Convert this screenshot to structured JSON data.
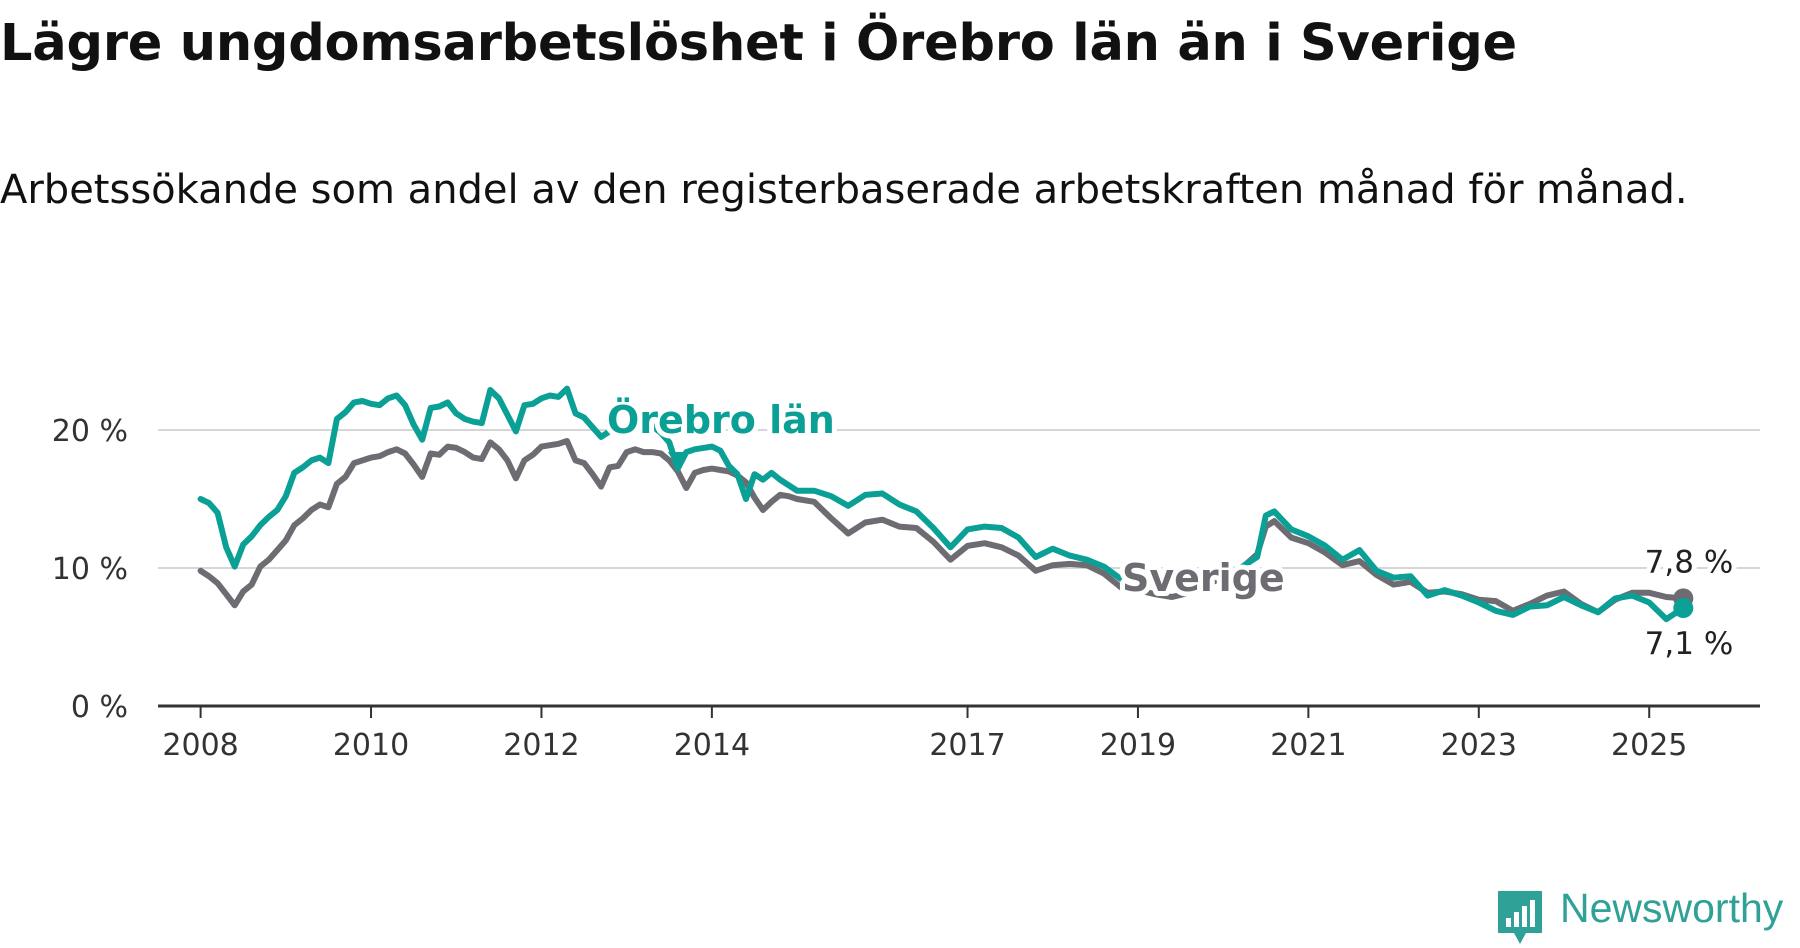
{
  "header": {
    "title": "Lägre ungdomsarbetslöshet i Örebro län än i Sverige",
    "subtitle": "Arbetssökande som andel av den registerbaserade arbetskraften månad för månad."
  },
  "brand": {
    "name": "Newsworthy",
    "color": "#2fa197"
  },
  "chart_data": {
    "type": "line",
    "title": "Lägre ungdomsarbetslöshet i Örebro län än i Sverige",
    "subtitle": "Arbetssökande som andel av den registerbaserade arbetskraften månad för månad.",
    "xlabel": "",
    "ylabel": "",
    "ylim": [
      0,
      20
    ],
    "xlim": [
      2007.5,
      2026.3
    ],
    "y_ticks": [
      0,
      10,
      20
    ],
    "y_tick_labels": [
      "0 %",
      "10 %",
      "20 %"
    ],
    "x_ticks": [
      2008,
      2010,
      2012,
      2014,
      2017,
      2019,
      2021,
      2023,
      2025
    ],
    "x_tick_labels": [
      "2008",
      "2010",
      "2012",
      "2014",
      "2017",
      "2019",
      "2021",
      "2023",
      "2025"
    ],
    "grid": true,
    "series": [
      {
        "name": "Sverige",
        "color": "#6e6c72",
        "end_label": "7,8 %",
        "x": [
          2008.0,
          2008.1,
          2008.2,
          2008.3,
          2008.4,
          2008.5,
          2008.6,
          2008.7,
          2008.8,
          2008.9,
          2009.0,
          2009.1,
          2009.2,
          2009.3,
          2009.4,
          2009.5,
          2009.6,
          2009.7,
          2009.8,
          2009.9,
          2010.0,
          2010.1,
          2010.2,
          2010.3,
          2010.4,
          2010.5,
          2010.6,
          2010.7,
          2010.8,
          2010.9,
          2011.0,
          2011.1,
          2011.2,
          2011.3,
          2011.4,
          2011.5,
          2011.6,
          2011.7,
          2011.8,
          2011.9,
          2012.0,
          2012.1,
          2012.2,
          2012.3,
          2012.4,
          2012.5,
          2012.6,
          2012.7,
          2012.8,
          2012.9,
          2013.0,
          2013.1,
          2013.2,
          2013.3,
          2013.4,
          2013.5,
          2013.6,
          2013.7,
          2013.8,
          2013.9,
          2014.0,
          2014.1,
          2014.2,
          2014.3,
          2014.4,
          2014.5,
          2014.6,
          2014.7,
          2014.8,
          2014.9,
          2015.0,
          2015.2,
          2015.4,
          2015.6,
          2015.8,
          2016.0,
          2016.2,
          2016.4,
          2016.6,
          2016.8,
          2017.0,
          2017.2,
          2017.4,
          2017.6,
          2017.8,
          2018.0,
          2018.2,
          2018.4,
          2018.6,
          2018.8,
          2019.0,
          2019.2,
          2019.4,
          2019.6,
          2019.8,
          2020.0,
          2020.2,
          2020.4,
          2020.5,
          2020.6,
          2020.8,
          2021.0,
          2021.2,
          2021.4,
          2021.6,
          2021.8,
          2022.0,
          2022.2,
          2022.4,
          2022.6,
          2022.8,
          2023.0,
          2023.2,
          2023.4,
          2023.6,
          2023.8,
          2024.0,
          2024.2,
          2024.4,
          2024.6,
          2024.8,
          2025.0,
          2025.2,
          2025.4
        ],
        "y": [
          9.8,
          9.4,
          8.9,
          8.1,
          7.3,
          8.3,
          8.8,
          10.1,
          10.6,
          11.3,
          12.0,
          13.1,
          13.6,
          14.2,
          14.6,
          14.4,
          16.1,
          16.6,
          17.6,
          17.8,
          18.0,
          18.1,
          18.4,
          18.6,
          18.3,
          17.5,
          16.6,
          18.3,
          18.2,
          18.8,
          18.7,
          18.4,
          18.0,
          17.9,
          19.1,
          18.6,
          17.8,
          16.5,
          17.8,
          18.2,
          18.8,
          18.9,
          19.0,
          19.2,
          17.8,
          17.6,
          16.8,
          15.9,
          17.3,
          17.4,
          18.4,
          18.6,
          18.4,
          18.4,
          18.3,
          17.8,
          17.0,
          15.8,
          16.9,
          17.1,
          17.2,
          17.1,
          17.0,
          16.7,
          16.2,
          15.1,
          14.2,
          14.8,
          15.3,
          15.2,
          15.0,
          14.8,
          13.6,
          12.5,
          13.3,
          13.5,
          13.0,
          12.9,
          11.9,
          10.6,
          11.6,
          11.8,
          11.5,
          10.9,
          9.8,
          10.2,
          10.3,
          10.2,
          9.6,
          8.6,
          8.4,
          8.1,
          7.9,
          8.2,
          8.8,
          9.3,
          9.9,
          11.0,
          13.0,
          13.4,
          12.2,
          11.8,
          11.1,
          10.2,
          10.5,
          9.5,
          8.8,
          9.0,
          8.2,
          8.3,
          8.1,
          7.7,
          7.6,
          6.9,
          7.4,
          8.0,
          8.3,
          7.4,
          6.8,
          7.7,
          8.2,
          8.2,
          7.9,
          7.8
        ]
      },
      {
        "name": "Örebro län",
        "color": "#0ba096",
        "end_label": "7,1 %",
        "x": [
          2008.0,
          2008.1,
          2008.2,
          2008.3,
          2008.4,
          2008.5,
          2008.6,
          2008.7,
          2008.8,
          2008.9,
          2009.0,
          2009.1,
          2009.2,
          2009.3,
          2009.4,
          2009.5,
          2009.6,
          2009.7,
          2009.8,
          2009.9,
          2010.0,
          2010.1,
          2010.2,
          2010.3,
          2010.4,
          2010.5,
          2010.6,
          2010.7,
          2010.8,
          2010.9,
          2011.0,
          2011.1,
          2011.2,
          2011.3,
          2011.4,
          2011.5,
          2011.6,
          2011.7,
          2011.8,
          2011.9,
          2012.0,
          2012.1,
          2012.2,
          2012.3,
          2012.4,
          2012.5,
          2012.6,
          2012.7,
          2012.8,
          2012.9,
          2013.0,
          2013.1,
          2013.2,
          2013.3,
          2013.4,
          2013.5,
          2013.6,
          2013.7,
          2013.8,
          2013.9,
          2014.0,
          2014.1,
          2014.2,
          2014.3,
          2014.4,
          2014.5,
          2014.6,
          2014.7,
          2014.8,
          2014.9,
          2015.0,
          2015.2,
          2015.4,
          2015.6,
          2015.8,
          2016.0,
          2016.2,
          2016.4,
          2016.6,
          2016.8,
          2017.0,
          2017.2,
          2017.4,
          2017.6,
          2017.8,
          2018.0,
          2018.2,
          2018.4,
          2018.6,
          2018.8,
          2019.0,
          2019.2,
          2019.4,
          2019.6,
          2019.8,
          2020.0,
          2020.2,
          2020.4,
          2020.5,
          2020.6,
          2020.8,
          2021.0,
          2021.2,
          2021.4,
          2021.6,
          2021.8,
          2022.0,
          2022.2,
          2022.4,
          2022.6,
          2022.8,
          2023.0,
          2023.2,
          2023.4,
          2023.6,
          2023.8,
          2024.0,
          2024.2,
          2024.4,
          2024.6,
          2024.8,
          2025.0,
          2025.2,
          2025.4
        ],
        "y": [
          15.0,
          14.7,
          14.0,
          11.5,
          10.1,
          11.7,
          12.3,
          13.1,
          13.7,
          14.2,
          15.2,
          16.9,
          17.3,
          17.8,
          18.0,
          17.6,
          20.8,
          21.3,
          22.0,
          22.1,
          21.9,
          21.8,
          22.3,
          22.5,
          21.8,
          20.4,
          19.3,
          21.6,
          21.7,
          22.0,
          21.2,
          20.8,
          20.6,
          20.5,
          22.9,
          22.3,
          21.1,
          19.9,
          21.8,
          21.9,
          22.3,
          22.5,
          22.4,
          23.0,
          21.2,
          20.9,
          20.2,
          19.5,
          19.9,
          20.0,
          20.3,
          20.5,
          20.4,
          20.3,
          19.8,
          19.1,
          17.2,
          18.4,
          18.6,
          18.7,
          18.8,
          18.5,
          17.4,
          16.8,
          15.0,
          16.8,
          16.4,
          16.9,
          16.4,
          16.0,
          15.6,
          15.6,
          15.2,
          14.5,
          15.3,
          15.4,
          14.6,
          14.1,
          12.9,
          11.5,
          12.8,
          13.0,
          12.9,
          12.2,
          10.8,
          11.4,
          10.9,
          10.6,
          10.1,
          9.2,
          9.8,
          9.4,
          9.1,
          8.6,
          9.2,
          9.6,
          10.0,
          10.8,
          13.8,
          14.1,
          12.8,
          12.3,
          11.6,
          10.6,
          11.3,
          9.8,
          9.3,
          9.4,
          8.0,
          8.4,
          8.0,
          7.5,
          6.9,
          6.6,
          7.2,
          7.3,
          7.9,
          7.3,
          6.8,
          7.8,
          8.0,
          7.5,
          6.3,
          7.1
        ]
      }
    ]
  }
}
